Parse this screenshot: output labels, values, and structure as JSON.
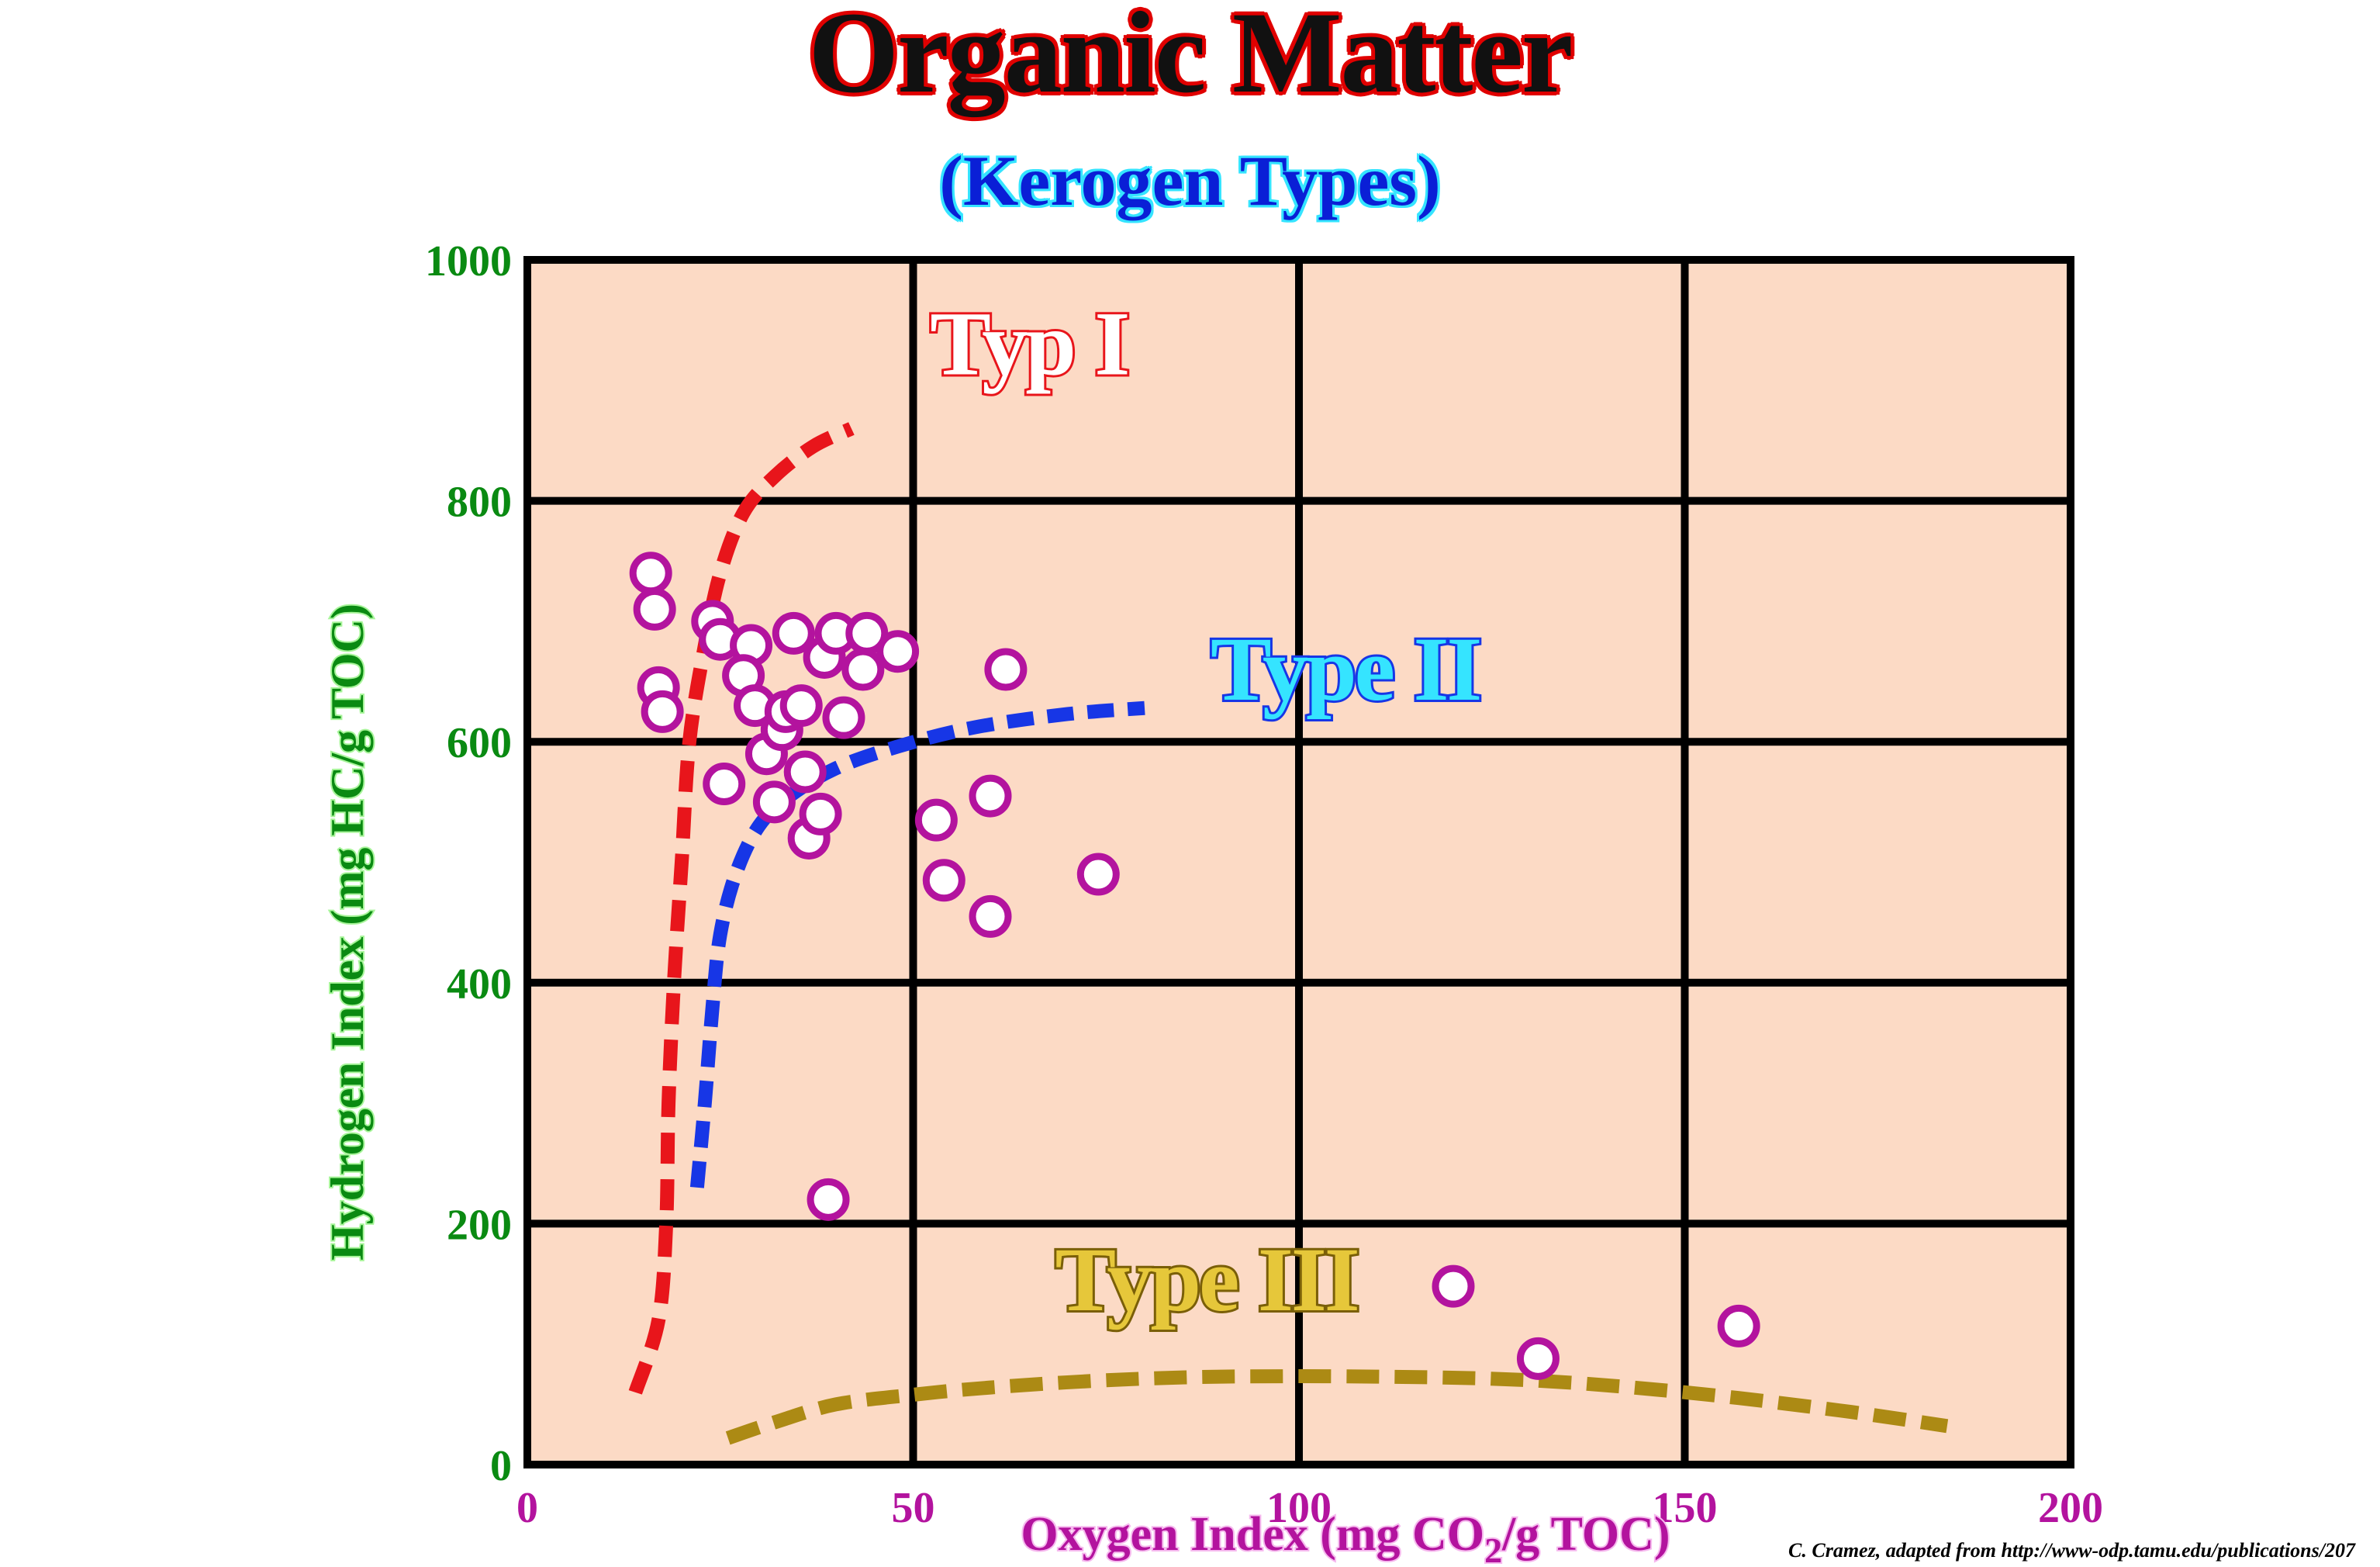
{
  "title": "Organic Matter",
  "subtitle": "(Kerogen Types)",
  "credit": "C. Cramez, adapted from http://www-odp.tamu.edu/publications/207",
  "colors": {
    "plot_background": "#fcdac5",
    "grid": "#000000",
    "y_axis_text": "#0a8a12",
    "x_axis_text": "#b3139e",
    "points": "#b3139e",
    "type1": "#e8151b",
    "type2": "#1736e6",
    "type3": "#ac8a14"
  },
  "chart_data": {
    "type": "scatter",
    "xlabel": "Oxygen Index (mg CO₂/g TOC)",
    "xlabel_parts": {
      "before": "Oxygen Index (mg CO",
      "sub": "2",
      "after": "/g TOC)"
    },
    "ylabel": "Hydrogen Index (mg HC/g TOC)",
    "xlim": [
      0,
      200
    ],
    "ylim": [
      0,
      1000
    ],
    "xticks": [
      "0",
      "50",
      "100",
      "150",
      "200"
    ],
    "yticks": [
      "0",
      "200",
      "400",
      "600",
      "800",
      "1000"
    ],
    "grid": true,
    "series": [
      {
        "kind": "points",
        "x": [
          16,
          16.5,
          17,
          17.5,
          24,
          25,
          29,
          28,
          29.5,
          25.5,
          31,
          32,
          33,
          33.5,
          34.5,
          35.5,
          36,
          36.5,
          38,
          38.5,
          40,
          41,
          44,
          43.5,
          48,
          53,
          54,
          60,
          60,
          62,
          74,
          39,
          120,
          131,
          157
        ],
        "y": [
          740,
          710,
          645,
          625,
          700,
          685,
          680,
          655,
          630,
          565,
          590,
          550,
          610,
          625,
          690,
          630,
          575,
          520,
          540,
          670,
          690,
          620,
          690,
          660,
          675,
          535,
          485,
          455,
          555,
          660,
          490,
          220,
          148,
          88,
          115
        ]
      },
      {
        "kind": "curve",
        "name": "Typ I",
        "x": [
          14,
          17,
          18,
          18.3,
          19,
          20,
          21,
          23,
          25,
          28,
          32,
          37,
          42
        ],
        "y": [
          60,
          120,
          200,
          300,
          400,
          500,
          600,
          680,
          740,
          790,
          820,
          845,
          860
        ]
      },
      {
        "kind": "curve",
        "name": "Type II",
        "x": [
          22,
          23,
          24,
          25,
          27,
          30,
          34,
          40,
          48,
          58,
          70,
          80
        ],
        "y": [
          230,
          300,
          380,
          440,
          490,
          530,
          555,
          578,
          596,
          612,
          623,
          628
        ]
      },
      {
        "kind": "curve",
        "name": "Type III",
        "x": [
          26,
          32,
          40,
          50,
          60,
          75,
          90,
          110,
          130,
          150,
          170,
          184
        ],
        "y": [
          22,
          35,
          50,
          58,
          64,
          70,
          73,
          73,
          70,
          60,
          45,
          32
        ]
      }
    ],
    "curve_labels": [
      {
        "text": "Typ I",
        "x": 65,
        "y": 905,
        "color": "#e8151b",
        "outline": "#ffffff"
      },
      {
        "text": "Type II",
        "x": 106,
        "y": 635,
        "color": "#35e4ff",
        "outline": "#1736e6"
      },
      {
        "text": "Type III",
        "x": 88,
        "y": 128,
        "color": "#e6c73a",
        "outline": "#7a5f08"
      }
    ]
  }
}
